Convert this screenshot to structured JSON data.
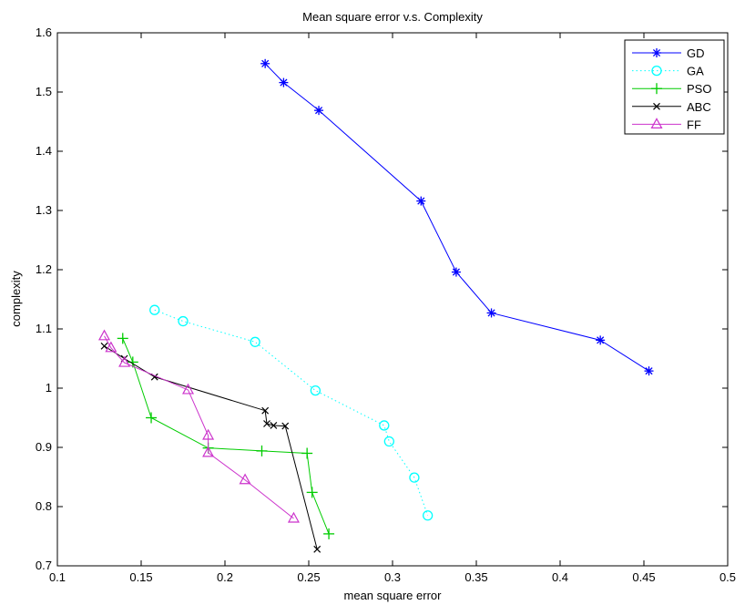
{
  "chart_data": {
    "type": "line",
    "title": "Mean square error v.s. Complexity",
    "xlabel": "mean square error",
    "ylabel": "complexity",
    "xlim": [
      0.1,
      0.5
    ],
    "ylim": [
      0.7,
      1.6
    ],
    "xticks": [
      "0.1",
      "0.15",
      "0.2",
      "0.25",
      "0.3",
      "0.35",
      "0.4",
      "0.45",
      "0.5"
    ],
    "yticks": [
      "0.7",
      "0.8",
      "0.9",
      "1",
      "1.1",
      "1.2",
      "1.3",
      "1.4",
      "1.5",
      "1.6"
    ],
    "grid": false,
    "legend_position": "top-right",
    "series": [
      {
        "name": "GD",
        "color": "#0000ff",
        "marker": "asterisk",
        "line": "solid",
        "x": [
          0.224,
          0.235,
          0.256,
          0.317,
          0.338,
          0.359,
          0.424,
          0.453
        ],
        "y": [
          1.548,
          1.516,
          1.469,
          1.316,
          1.196,
          1.127,
          1.081,
          1.029
        ]
      },
      {
        "name": "GA",
        "color": "#00ffff",
        "marker": "circle",
        "line": "dotted",
        "x": [
          0.158,
          0.175,
          0.218,
          0.254,
          0.295,
          0.298,
          0.313,
          0.321
        ],
        "y": [
          1.132,
          1.113,
          1.078,
          0.996,
          0.937,
          0.91,
          0.849,
          0.785
        ]
      },
      {
        "name": "PSO",
        "color": "#00cc00",
        "marker": "plus",
        "line": "solid",
        "x": [
          0.139,
          0.145,
          0.156,
          0.19,
          0.222,
          0.249,
          0.252,
          0.262
        ],
        "y": [
          1.084,
          1.044,
          0.95,
          0.899,
          0.894,
          0.89,
          0.824,
          0.754
        ]
      },
      {
        "name": "ABC",
        "color": "#000000",
        "marker": "cross",
        "line": "solid",
        "x": [
          0.128,
          0.14,
          0.158,
          0.224,
          0.225,
          0.229,
          0.236,
          0.255
        ],
        "y": [
          1.071,
          1.05,
          1.019,
          0.962,
          0.94,
          0.937,
          0.936,
          0.728
        ]
      },
      {
        "name": "FF",
        "color": "#cc33cc",
        "marker": "triangle",
        "line": "solid",
        "x": [
          0.128,
          0.132,
          0.14,
          0.178,
          0.19,
          0.19,
          0.212,
          0.241
        ],
        "y": [
          1.088,
          1.068,
          1.043,
          0.997,
          0.92,
          0.891,
          0.845,
          0.78
        ]
      }
    ]
  }
}
